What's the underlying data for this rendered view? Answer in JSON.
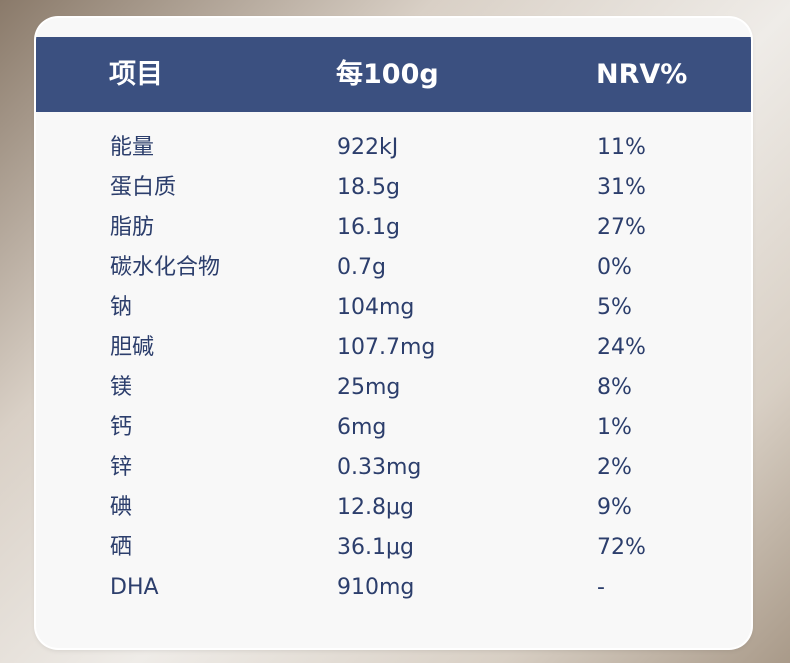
{
  "table": {
    "header": [
      "项目",
      "每100g",
      "NRV%"
    ],
    "rows": [
      [
        "能量",
        "922kJ",
        "11%"
      ],
      [
        "蛋白质",
        "18.5g",
        "31%"
      ],
      [
        "脂肪",
        "16.1g",
        "27%"
      ],
      [
        "碳水化合物",
        "0.7g",
        "0%"
      ],
      [
        "钠",
        "104mg",
        "5%"
      ],
      [
        "胆碱",
        "107.7mg",
        "24%"
      ],
      [
        "镁",
        "25mg",
        "8%"
      ],
      [
        "钙",
        "6mg",
        "1%"
      ],
      [
        "锌",
        "0.33mg",
        "2%"
      ],
      [
        "碘",
        "12.8μg",
        "9%"
      ],
      [
        "硒",
        "36.1μg",
        "72%"
      ],
      [
        "DHA",
        "910mg",
        "-"
      ]
    ]
  }
}
